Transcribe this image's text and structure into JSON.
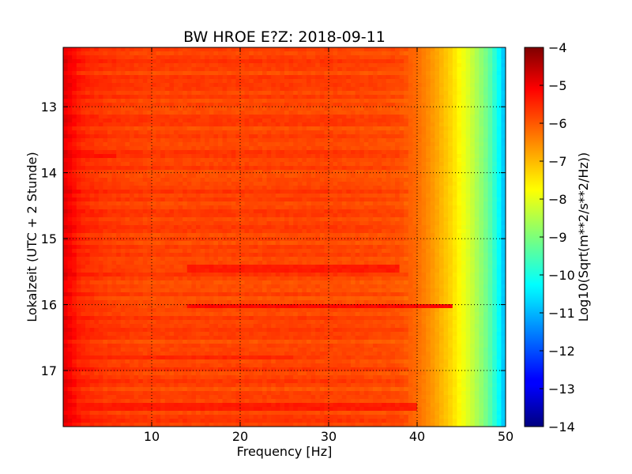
{
  "chart_data": {
    "type": "heatmap",
    "title": "BW HROE E?Z: 2018-09-11",
    "xlabel": "Frequency [Hz]",
    "ylabel": "Lokalzeit (UTC + 2 Stunde)",
    "colorbar_label": "Log10(Sqrt(m**2/s**2/Hz))",
    "colormap": "jet",
    "grid": true,
    "xlim": [
      0,
      50
    ],
    "ylim": [
      12.1,
      17.85
    ],
    "y_inverted": true,
    "clim": [
      -14,
      -4
    ],
    "x_ticks": [
      10,
      20,
      30,
      40,
      50
    ],
    "x_tick_labels": [
      "10",
      "20",
      "30",
      "40",
      "50"
    ],
    "y_ticks": [
      13,
      14,
      15,
      16,
      17
    ],
    "y_tick_labels": [
      "13",
      "14",
      "15",
      "16",
      "17"
    ],
    "c_ticks": [
      -4,
      -5,
      -6,
      -7,
      -8,
      -9,
      -10,
      -11,
      -12,
      -13,
      -14
    ],
    "c_tick_labels": [
      "−4",
      "−5",
      "−6",
      "−7",
      "−8",
      "−9",
      "−10",
      "−11",
      "−12",
      "−13",
      "−14"
    ],
    "frequency_profile": {
      "freq_hz": [
        0,
        1,
        2,
        5,
        10,
        20,
        30,
        38,
        40,
        42,
        44,
        46,
        48,
        49,
        50
      ],
      "log10_psd": [
        -5.0,
        -5.3,
        -5.6,
        -5.8,
        -5.9,
        -5.9,
        -5.9,
        -6.0,
        -6.3,
        -6.8,
        -7.4,
        -8.2,
        -9.2,
        -10.0,
        -11.0
      ]
    },
    "notable_bands": [
      {
        "time_hour": 16.02,
        "freq_range": [
          14,
          44
        ],
        "log10_psd": -5.3
      },
      {
        "time_hour": 17.55,
        "freq_range": [
          2,
          40
        ],
        "log10_psd": -5.5
      },
      {
        "time_hour": 13.75,
        "freq_range": [
          2,
          6
        ],
        "log10_psd": -5.4
      },
      {
        "time_hour": 15.45,
        "freq_range": [
          14,
          38
        ],
        "log10_psd": -5.5
      },
      {
        "time_hour": 16.8,
        "freq_range": [
          0,
          26
        ],
        "log10_psd": -5.6
      }
    ]
  }
}
